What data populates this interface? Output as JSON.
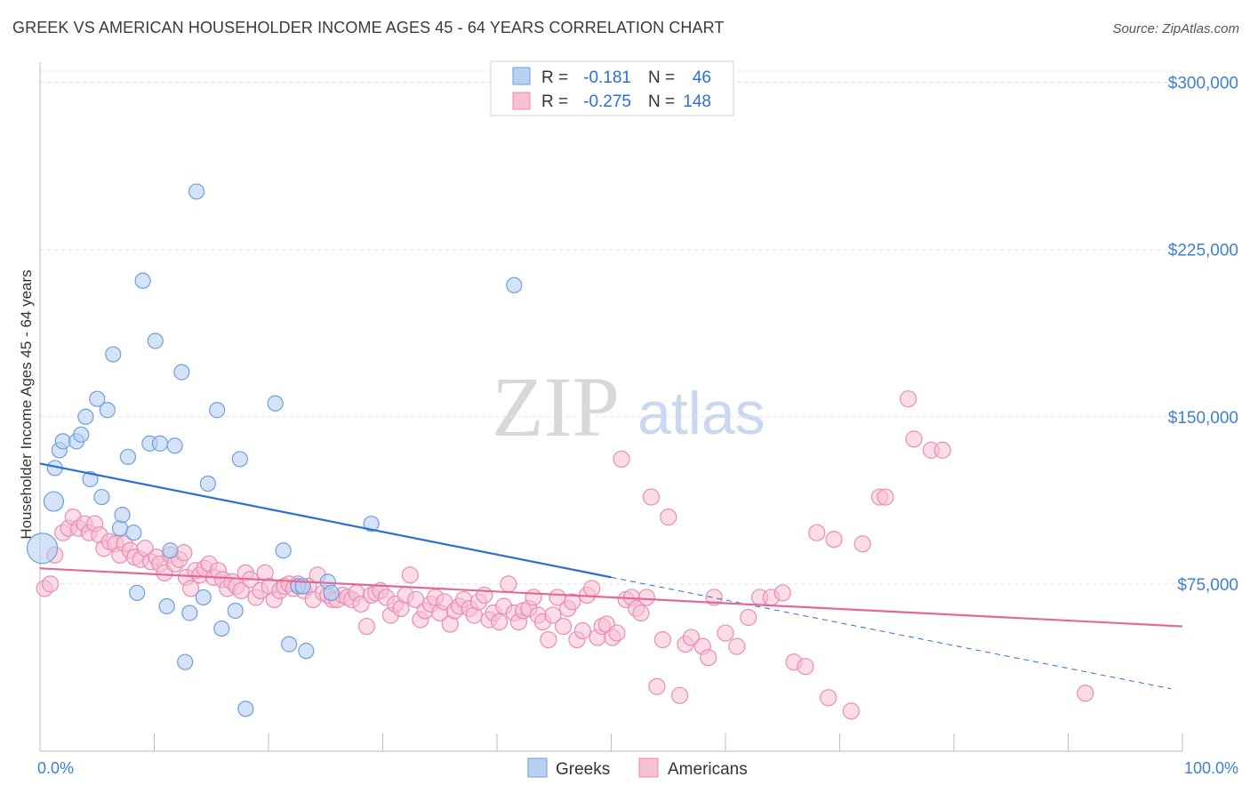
{
  "title": "GREEK VS AMERICAN HOUSEHOLDER INCOME AGES 45 - 64 YEARS CORRELATION CHART",
  "source": "Source: ZipAtlas.com",
  "watermark": {
    "zip": "ZIP",
    "atlas": "atlas"
  },
  "colors": {
    "greeks_fill": "#b8d0f2",
    "greeks_stroke": "#6f9ee0",
    "greeks_line": "#2a6fd4",
    "americans_fill": "#f7c0d3",
    "americans_stroke": "#e98db0",
    "americans_line": "#e2689a",
    "stat_value": "#2a6fd4",
    "grid": "#e2e2e2"
  },
  "legend": {
    "rows": [
      {
        "r_label": "R =",
        "r_value": "-0.181",
        "n_label": "N =",
        "n_value": "46"
      },
      {
        "r_label": "R =",
        "r_value": "-0.275",
        "n_label": "N =",
        "n_value": "148"
      }
    ]
  },
  "bottom_legend": [
    "Greeks",
    "Americans"
  ],
  "chart_data": {
    "type": "scatter",
    "title": "GREEK VS AMERICAN HOUSEHOLDER INCOME AGES 45 - 64 YEARS CORRELATION CHART",
    "xlabel": "",
    "ylabel": "Householder Income Ages 45 - 64 years",
    "xlim": [
      0,
      100
    ],
    "ylim": [
      0,
      305000
    ],
    "x_tick_labels": [
      "0.0%",
      "100.0%"
    ],
    "y_ticks": [
      75000,
      150000,
      225000,
      300000
    ],
    "y_tick_labels": [
      "$75,000",
      "$150,000",
      "$225,000",
      "$300,000"
    ],
    "grid": true,
    "legend_position": "top-center",
    "series": [
      {
        "name": "Greeks",
        "r": -0.181,
        "n": 46,
        "trend": {
          "x0": 0,
          "y0": 129000,
          "x1": 50,
          "y1": 78000,
          "dashed_to_x": 99,
          "dashed_to_y": 28000
        },
        "points": [
          [
            0.2,
            91000
          ],
          [
            1.2,
            112000
          ],
          [
            1.3,
            127000
          ],
          [
            1.7,
            135000
          ],
          [
            2.0,
            139000
          ],
          [
            3.2,
            139000
          ],
          [
            3.6,
            142000
          ],
          [
            4.0,
            150000
          ],
          [
            4.4,
            122000
          ],
          [
            5.0,
            158000
          ],
          [
            5.4,
            114000
          ],
          [
            5.9,
            153000
          ],
          [
            6.4,
            178000
          ],
          [
            7.0,
            100000
          ],
          [
            7.2,
            106000
          ],
          [
            7.7,
            132000
          ],
          [
            8.2,
            98000
          ],
          [
            8.5,
            71000
          ],
          [
            9.0,
            211000
          ],
          [
            9.6,
            138000
          ],
          [
            10.1,
            184000
          ],
          [
            10.5,
            138000
          ],
          [
            11.1,
            65000
          ],
          [
            11.4,
            90000
          ],
          [
            11.8,
            137000
          ],
          [
            12.4,
            170000
          ],
          [
            12.7,
            40000
          ],
          [
            13.1,
            62000
          ],
          [
            13.7,
            251000
          ],
          [
            14.3,
            69000
          ],
          [
            14.7,
            120000
          ],
          [
            15.5,
            153000
          ],
          [
            15.9,
            55000
          ],
          [
            17.1,
            63000
          ],
          [
            17.5,
            131000
          ],
          [
            18.0,
            19000
          ],
          [
            20.6,
            156000
          ],
          [
            21.3,
            90000
          ],
          [
            21.8,
            48000
          ],
          [
            22.6,
            74000
          ],
          [
            23.0,
            74000
          ],
          [
            23.3,
            45000
          ],
          [
            25.2,
            76000
          ],
          [
            25.5,
            71000
          ],
          [
            29.0,
            102000
          ],
          [
            41.5,
            209000
          ]
        ]
      },
      {
        "name": "Americans",
        "r": -0.275,
        "n": 148,
        "trend": {
          "x0": 0,
          "y0": 82000,
          "x1": 100,
          "y1": 56000
        },
        "points": [
          [
            0.4,
            73000
          ],
          [
            0.9,
            75000
          ],
          [
            1.3,
            88000
          ],
          [
            2.0,
            98000
          ],
          [
            2.5,
            100000
          ],
          [
            2.9,
            105000
          ],
          [
            3.4,
            100000
          ],
          [
            3.9,
            102000
          ],
          [
            4.3,
            98000
          ],
          [
            4.8,
            102000
          ],
          [
            5.2,
            97000
          ],
          [
            5.6,
            91000
          ],
          [
            6.1,
            94000
          ],
          [
            6.6,
            93000
          ],
          [
            7.0,
            88000
          ],
          [
            7.4,
            93000
          ],
          [
            7.9,
            90000
          ],
          [
            8.3,
            87000
          ],
          [
            8.8,
            86000
          ],
          [
            9.2,
            91000
          ],
          [
            9.7,
            85000
          ],
          [
            10.2,
            87000
          ],
          [
            10.5,
            84000
          ],
          [
            10.9,
            80000
          ],
          [
            11.4,
            88000
          ],
          [
            11.8,
            84000
          ],
          [
            12.2,
            86000
          ],
          [
            12.6,
            89000
          ],
          [
            12.8,
            78000
          ],
          [
            13.2,
            73000
          ],
          [
            13.6,
            81000
          ],
          [
            14.0,
            79000
          ],
          [
            14.4,
            82000
          ],
          [
            14.8,
            84000
          ],
          [
            15.2,
            78000
          ],
          [
            15.6,
            81000
          ],
          [
            16.0,
            77000
          ],
          [
            16.4,
            73000
          ],
          [
            16.8,
            76000
          ],
          [
            17.2,
            74000
          ],
          [
            17.6,
            72000
          ],
          [
            18.0,
            80000
          ],
          [
            18.4,
            77000
          ],
          [
            18.9,
            69000
          ],
          [
            19.3,
            72000
          ],
          [
            19.7,
            80000
          ],
          [
            20.1,
            74000
          ],
          [
            20.5,
            68000
          ],
          [
            21.0,
            72000
          ],
          [
            21.4,
            74000
          ],
          [
            21.8,
            75000
          ],
          [
            22.2,
            73000
          ],
          [
            22.6,
            75000
          ],
          [
            23.1,
            72000
          ],
          [
            23.5,
            74000
          ],
          [
            23.9,
            68000
          ],
          [
            24.3,
            79000
          ],
          [
            24.8,
            71000
          ],
          [
            25.2,
            70000
          ],
          [
            25.6,
            68000
          ],
          [
            26.0,
            68000
          ],
          [
            26.5,
            70000
          ],
          [
            26.9,
            69000
          ],
          [
            27.3,
            68000
          ],
          [
            27.7,
            71000
          ],
          [
            28.1,
            66000
          ],
          [
            28.6,
            56000
          ],
          [
            29.0,
            70000
          ],
          [
            29.4,
            71000
          ],
          [
            29.8,
            72000
          ],
          [
            30.3,
            69000
          ],
          [
            30.7,
            61000
          ],
          [
            31.1,
            66000
          ],
          [
            31.6,
            64000
          ],
          [
            32.0,
            70000
          ],
          [
            32.4,
            79000
          ],
          [
            32.9,
            68000
          ],
          [
            33.3,
            59000
          ],
          [
            33.7,
            63000
          ],
          [
            34.2,
            66000
          ],
          [
            34.6,
            69000
          ],
          [
            35.0,
            62000
          ],
          [
            35.4,
            67000
          ],
          [
            35.9,
            57000
          ],
          [
            36.3,
            63000
          ],
          [
            36.7,
            65000
          ],
          [
            37.1,
            68000
          ],
          [
            37.6,
            64000
          ],
          [
            38.0,
            61000
          ],
          [
            38.4,
            67000
          ],
          [
            38.9,
            70000
          ],
          [
            39.3,
            59000
          ],
          [
            39.7,
            62000
          ],
          [
            40.2,
            58000
          ],
          [
            40.6,
            65000
          ],
          [
            41.0,
            75000
          ],
          [
            41.5,
            62000
          ],
          [
            41.9,
            58000
          ],
          [
            42.3,
            63000
          ],
          [
            42.8,
            64000
          ],
          [
            43.2,
            69000
          ],
          [
            43.6,
            61000
          ],
          [
            44.0,
            58000
          ],
          [
            44.5,
            50000
          ],
          [
            44.9,
            61000
          ],
          [
            45.3,
            69000
          ],
          [
            45.8,
            56000
          ],
          [
            46.2,
            64000
          ],
          [
            46.6,
            67000
          ],
          [
            47.0,
            50000
          ],
          [
            47.5,
            54000
          ],
          [
            47.9,
            70000
          ],
          [
            48.3,
            73000
          ],
          [
            48.8,
            51000
          ],
          [
            49.2,
            56000
          ],
          [
            49.6,
            57000
          ],
          [
            50.1,
            51000
          ],
          [
            50.5,
            53000
          ],
          [
            50.9,
            131000
          ],
          [
            51.3,
            68000
          ],
          [
            51.8,
            69000
          ],
          [
            52.2,
            64000
          ],
          [
            52.6,
            62000
          ],
          [
            53.1,
            69000
          ],
          [
            53.5,
            114000
          ],
          [
            54.0,
            29000
          ],
          [
            54.5,
            50000
          ],
          [
            55.0,
            105000
          ],
          [
            56.0,
            25000
          ],
          [
            56.5,
            48000
          ],
          [
            57.0,
            51000
          ],
          [
            58.0,
            47000
          ],
          [
            58.5,
            42000
          ],
          [
            59.0,
            69000
          ],
          [
            60.0,
            53000
          ],
          [
            61.0,
            47000
          ],
          [
            62.0,
            60000
          ],
          [
            63.0,
            69000
          ],
          [
            64.0,
            69000
          ],
          [
            65.0,
            71000
          ],
          [
            66.0,
            40000
          ],
          [
            67.0,
            38000
          ],
          [
            68.0,
            98000
          ],
          [
            69.0,
            24000
          ],
          [
            69.5,
            95000
          ],
          [
            71.0,
            18000
          ],
          [
            72.0,
            93000
          ],
          [
            73.5,
            114000
          ],
          [
            74.0,
            114000
          ],
          [
            76.0,
            158000
          ],
          [
            76.5,
            140000
          ],
          [
            78.0,
            135000
          ],
          [
            79.0,
            135000
          ],
          [
            91.5,
            26000
          ]
        ]
      }
    ]
  }
}
